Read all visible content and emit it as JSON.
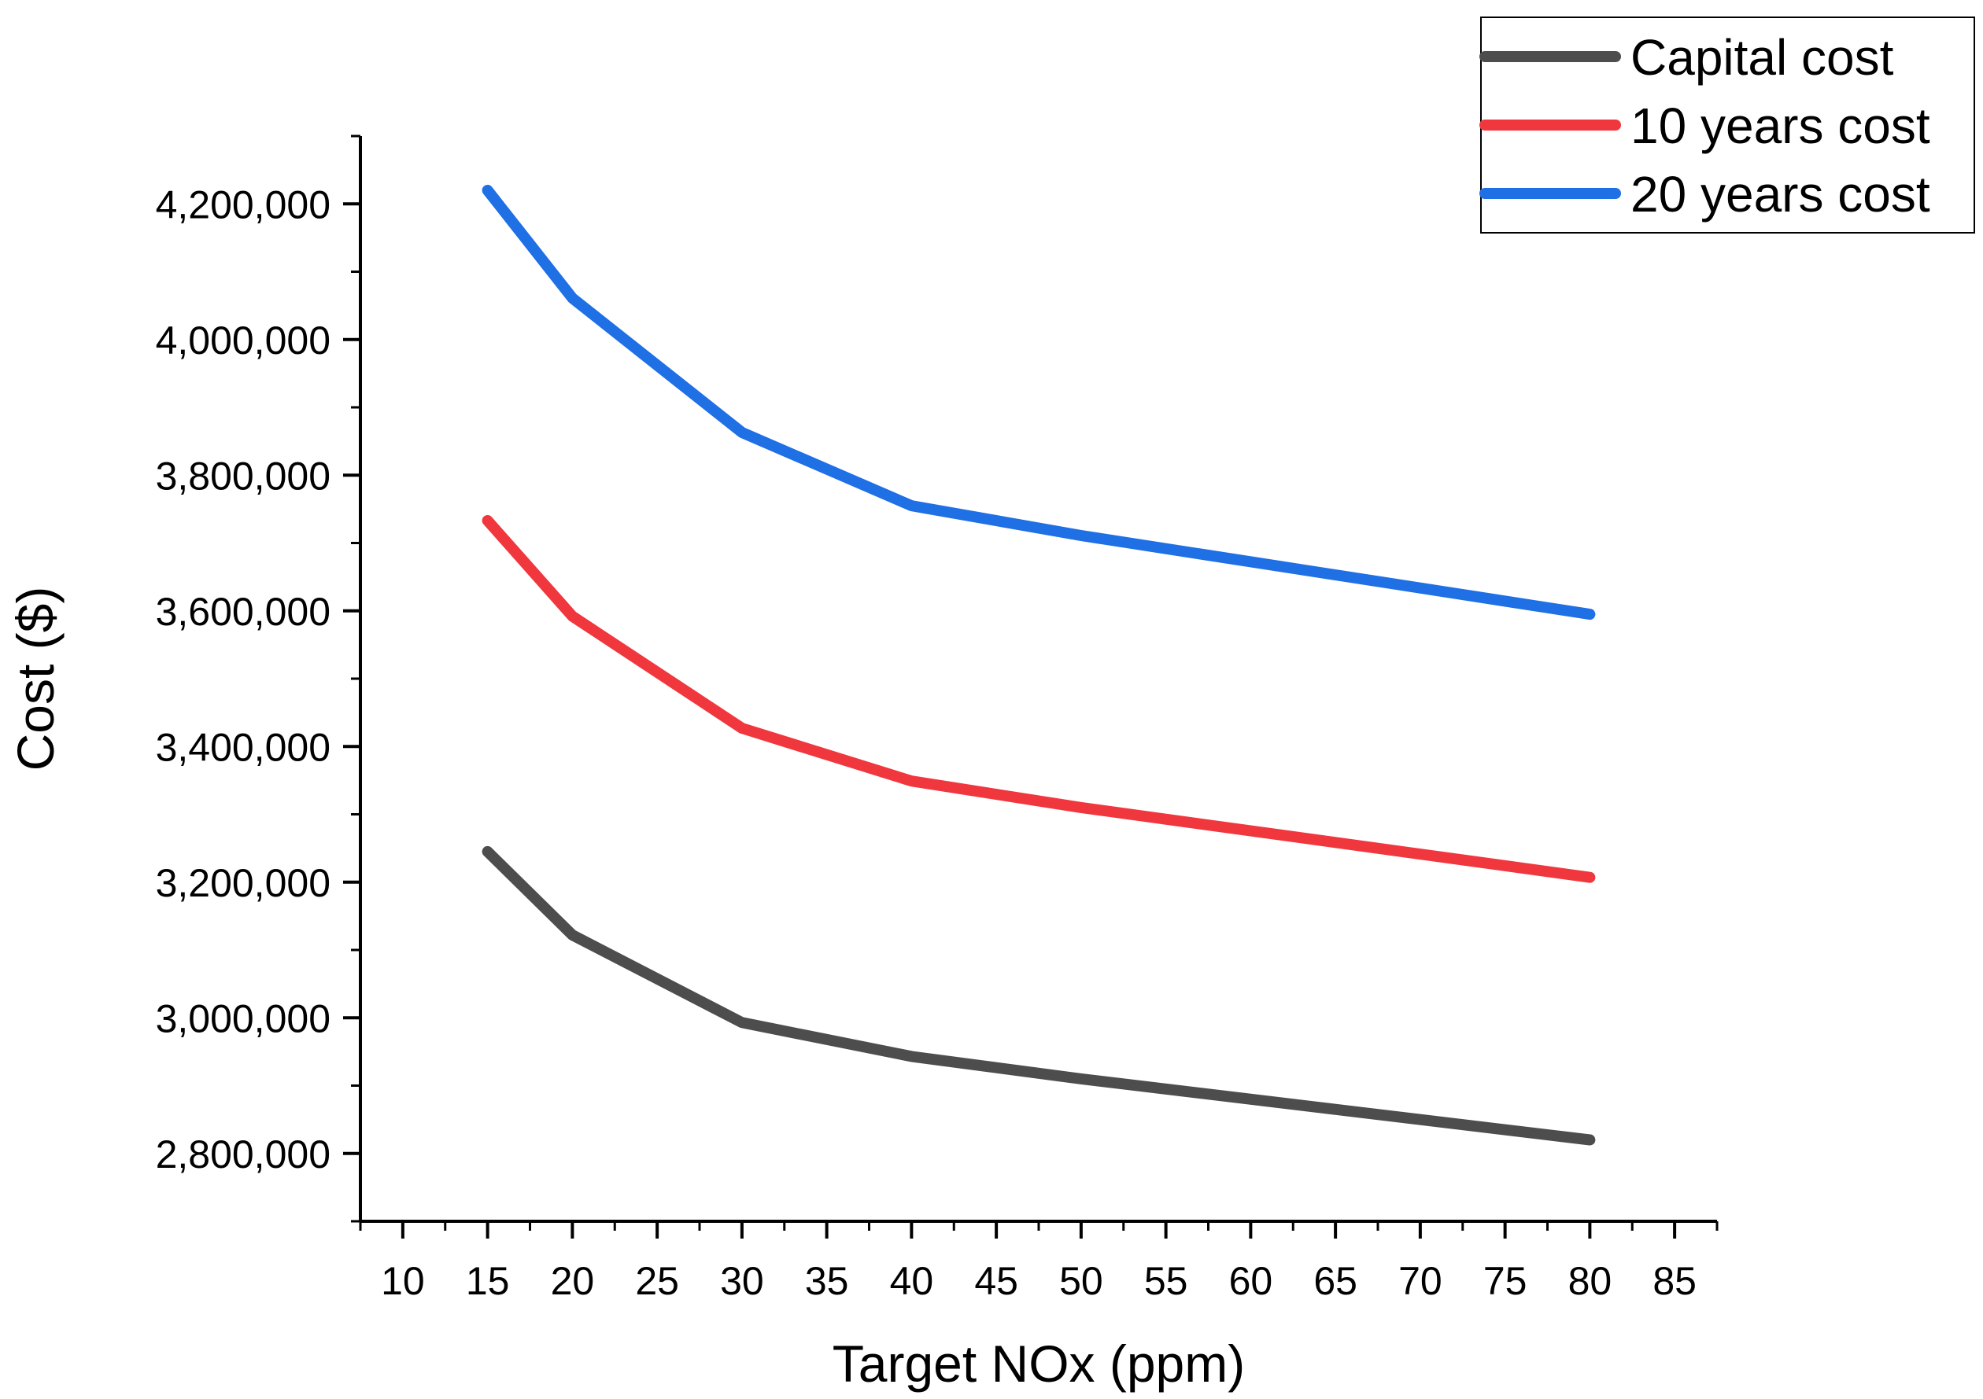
{
  "chart_data": {
    "type": "line",
    "title": "",
    "xlabel": "Target NOx (ppm)",
    "ylabel": "Cost ($)",
    "xlim": [
      7.5,
      87.5
    ],
    "ylim": [
      2700000,
      4300000
    ],
    "x_ticks": [
      10,
      15,
      20,
      25,
      30,
      35,
      40,
      45,
      50,
      55,
      60,
      65,
      70,
      75,
      80,
      85
    ],
    "x_tick_labels": [
      "10",
      "15",
      "20",
      "25",
      "30",
      "35",
      "40",
      "45",
      "50",
      "55",
      "60",
      "65",
      "70",
      "75",
      "80",
      "85"
    ],
    "y_ticks": [
      2800000,
      3000000,
      3200000,
      3400000,
      3600000,
      3800000,
      4000000,
      4200000
    ],
    "y_tick_labels": [
      "2,800,000",
      "3,000,000",
      "3,200,000",
      "3,400,000",
      "3,600,000",
      "3,800,000",
      "4,000,000",
      "4,200,000"
    ],
    "x": [
      15,
      20,
      30,
      40,
      50,
      80
    ],
    "series": [
      {
        "name": "Capital cost",
        "color": "#4d4d4d",
        "values": [
          3245000,
          3122000,
          2993000,
          2943000,
          2910000,
          2820000
        ]
      },
      {
        "name": "10 years cost",
        "color": "#f0373e",
        "values": [
          3733000,
          3592000,
          3427000,
          3349000,
          3310000,
          3207000
        ]
      },
      {
        "name": "20 years cost",
        "color": "#1f6fe5",
        "values": [
          4220000,
          4061000,
          3863000,
          3755000,
          3711000,
          3595000
        ]
      }
    ],
    "legend_position": "top-right",
    "grid": false
  }
}
